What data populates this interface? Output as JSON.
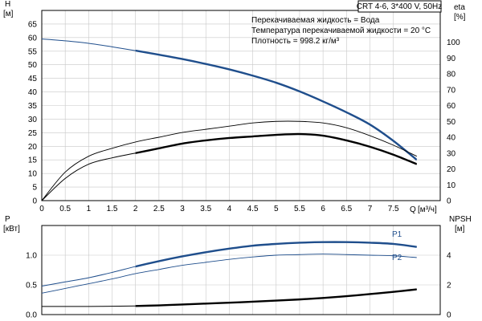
{
  "info": {
    "title": "CRT 4-6, 3*400 V, 50Hz",
    "lines": [
      "Перекачиваемая жидкость = Вода",
      "Температура перекачиваемой жидкости = 20 °C",
      "Плотность = 998.2 кг/м³"
    ]
  },
  "colors": {
    "blue": "#1f4e8c",
    "black": "#000000",
    "grid": "#c8c8c8"
  },
  "chart_data": [
    {
      "type": "line",
      "title": "",
      "x_label": "Q",
      "x_unit": "[м³/ч]",
      "x_range": [
        0,
        8.5
      ],
      "x_ticks": [
        "0",
        "0.5",
        "1",
        "1.5",
        "2",
        "2.5",
        "3",
        "3.5",
        "4",
        "4.5",
        "5",
        "5.5",
        "6",
        "6.5",
        "7",
        "7.5"
      ],
      "y_left_label": "H",
      "y_left_unit": "[м]",
      "y_left_range": [
        0,
        70
      ],
      "y_left_ticks": [
        "0",
        "5",
        "10",
        "15",
        "20",
        "25",
        "30",
        "35",
        "40",
        "45",
        "50",
        "55",
        "60",
        "65"
      ],
      "y_right_label": "eta",
      "y_right_unit": "[%]",
      "y_right_range": [
        0,
        120
      ],
      "y_right_ticks": [
        "0",
        "10",
        "20",
        "30",
        "40",
        "50",
        "60",
        "70",
        "80",
        "90",
        "100"
      ],
      "grid": true,
      "series": [
        {
          "axis": "left",
          "style": "blue-thick",
          "x": [
            0,
            0.5,
            1,
            1.5,
            2,
            2.5,
            3,
            3.5,
            4,
            4.5,
            5,
            5.5,
            6,
            6.5,
            7,
            7.5,
            8
          ],
          "y": [
            59.5,
            58.8,
            57.9,
            56.6,
            55.2,
            53.7,
            52.1,
            50.3,
            48.3,
            46.0,
            43.4,
            40.2,
            36.5,
            32.5,
            28.0,
            22.0,
            15.0
          ]
        },
        {
          "axis": "right",
          "style": "black-thin",
          "x": [
            0,
            0.5,
            1,
            1.5,
            2,
            2.5,
            3,
            3.5,
            4,
            4.5,
            5,
            5.5,
            6,
            6.5,
            7,
            7.5,
            8
          ],
          "y": [
            0,
            18,
            28,
            33,
            37,
            40,
            43,
            45,
            47,
            49,
            50,
            50,
            49,
            46,
            41,
            35,
            28
          ]
        },
        {
          "axis": "right",
          "style": "black-thick",
          "x": [
            0,
            0.5,
            1,
            1.5,
            2,
            2.5,
            3,
            3.5,
            4,
            4.5,
            5,
            5.5,
            6,
            6.5,
            7,
            7.5,
            8
          ],
          "y": [
            0,
            14,
            23,
            27,
            30,
            33,
            36,
            38,
            39.5,
            40.5,
            41.5,
            42,
            41,
            38,
            34,
            29,
            23
          ]
        }
      ]
    },
    {
      "type": "line",
      "title": "",
      "x_range": [
        0,
        8.5
      ],
      "y_left_label": "P",
      "y_left_unit": "[кВт]",
      "y_left_range": [
        0,
        1.5
      ],
      "y_left_ticks": [
        "0.0",
        "0.5",
        "1.0"
      ],
      "y_right_label": "NPSH",
      "y_right_unit": "[м]",
      "y_right_range": [
        0,
        6
      ],
      "y_right_ticks": [
        "0",
        "2",
        "4"
      ],
      "grid": true,
      "series": [
        {
          "name": "P1",
          "axis": "left",
          "style": "blue-thick",
          "x": [
            0,
            0.5,
            1,
            1.5,
            2,
            2.5,
            3,
            3.5,
            4,
            4.5,
            5,
            5.5,
            6,
            6.5,
            7,
            7.5,
            8
          ],
          "y": [
            0.48,
            0.55,
            0.62,
            0.71,
            0.81,
            0.9,
            0.98,
            1.05,
            1.11,
            1.16,
            1.19,
            1.21,
            1.22,
            1.22,
            1.21,
            1.19,
            1.14
          ]
        },
        {
          "name": "P2",
          "axis": "left",
          "style": "blue-thin",
          "x": [
            0,
            0.5,
            1,
            1.5,
            2,
            2.5,
            3,
            3.5,
            4,
            4.5,
            5,
            5.5,
            6,
            6.5,
            7,
            7.5,
            8
          ],
          "y": [
            0.36,
            0.44,
            0.52,
            0.6,
            0.69,
            0.76,
            0.83,
            0.88,
            0.93,
            0.97,
            1.0,
            1.01,
            1.02,
            1.01,
            1.0,
            0.99,
            0.96
          ]
        },
        {
          "axis": "right",
          "style": "black-thick",
          "x": [
            0,
            0.5,
            1,
            1.5,
            2,
            2.5,
            3,
            3.5,
            4,
            4.5,
            5,
            5.5,
            6,
            6.5,
            7,
            7.5,
            8
          ],
          "y": [
            0.55,
            0.55,
            0.55,
            0.56,
            0.58,
            0.62,
            0.68,
            0.74,
            0.8,
            0.87,
            0.94,
            1.02,
            1.12,
            1.24,
            1.38,
            1.53,
            1.7
          ]
        }
      ]
    }
  ]
}
